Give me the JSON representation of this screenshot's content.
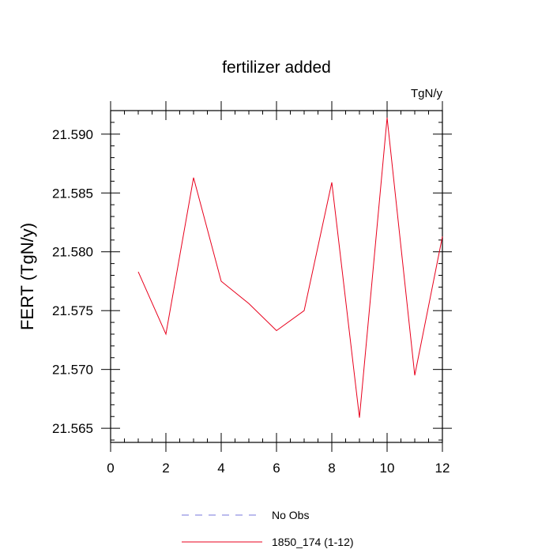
{
  "chart_data": {
    "type": "line",
    "title": "fertilizer added",
    "units_label": "TgN/y",
    "xlabel": "",
    "ylabel": "FERT  (TgN/y)",
    "xlim": [
      0,
      12
    ],
    "ylim": [
      21.5638,
      21.592
    ],
    "x_ticks": [
      0,
      2,
      4,
      6,
      8,
      10,
      12
    ],
    "y_ticks": [
      21.565,
      21.57,
      21.575,
      21.58,
      21.585,
      21.59
    ],
    "y_tick_labels": [
      "21.565",
      "21.570",
      "21.575",
      "21.580",
      "21.585",
      "21.590"
    ],
    "grid": false,
    "legend_position": "bottom",
    "series": [
      {
        "name": "1850_174 (1-12)",
        "color": "#e8001c",
        "style": "solid",
        "x": [
          1,
          2,
          3,
          4,
          5,
          6,
          7,
          8,
          9,
          10,
          11,
          12
        ],
        "values": [
          21.5783,
          21.573,
          21.5863,
          21.5775,
          21.5756,
          21.5733,
          21.575,
          21.5859,
          21.5659,
          21.5914,
          21.5695,
          21.5813
        ]
      }
    ],
    "legend": [
      {
        "label": "No Obs",
        "color": "#7777dd",
        "style": "dashed"
      },
      {
        "label": "1850_174 (1-12)",
        "color": "#e8001c",
        "style": "solid"
      }
    ]
  }
}
